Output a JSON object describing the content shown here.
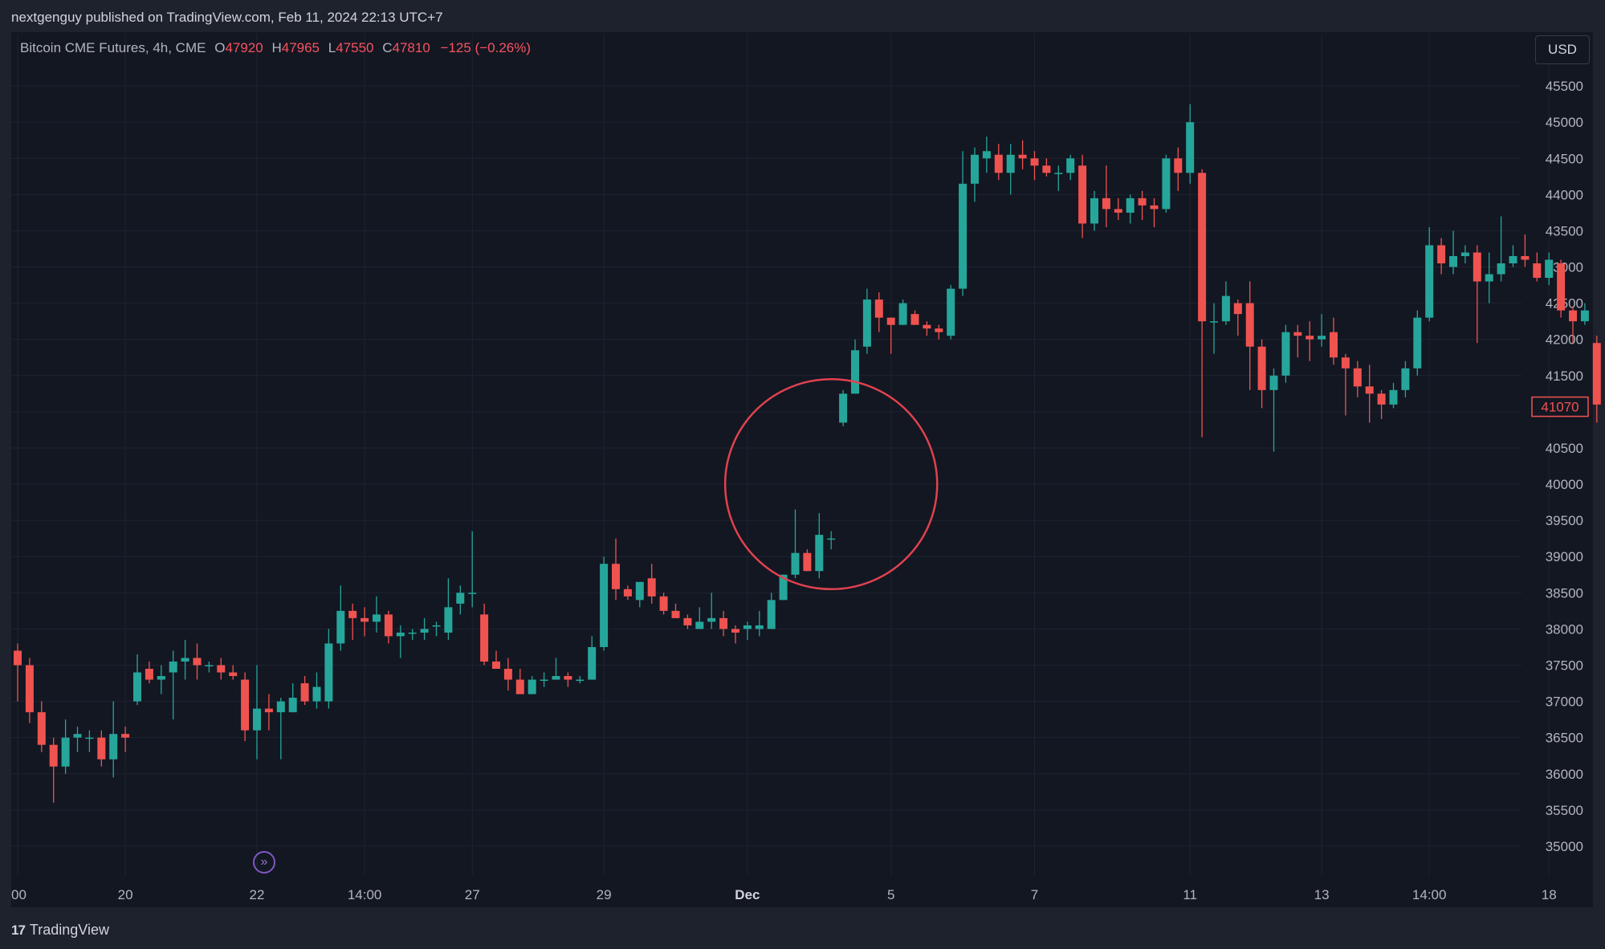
{
  "header": {
    "published": "nextgenguy published on TradingView.com, Feb 11, 2024 22:13 UTC+7"
  },
  "legend": {
    "symbol": "Bitcoin CME Futures, 4h, CME",
    "open_label": "O",
    "open": "47920",
    "high_label": "H",
    "high": "47965",
    "low_label": "L",
    "low": "47550",
    "close_label": "C",
    "close": "47810",
    "change": "−125 (−0.26%)"
  },
  "currency_button": "USD",
  "footer": {
    "brand": "TradingView",
    "brand_mark": "17"
  },
  "colors": {
    "up": "#26a69a",
    "down": "#ef5350",
    "annotation": "#e0424f",
    "background": "#131722"
  },
  "icons": {
    "go_to_date": "scroll-to-realtime-icon"
  },
  "chart_data": {
    "type": "candlestick",
    "timeframe": "4h",
    "ylim": [
      34600,
      46000
    ],
    "y_ticks": [
      35000,
      35500,
      36000,
      36500,
      37000,
      37500,
      38000,
      38500,
      39000,
      39500,
      40000,
      40500,
      41000,
      41500,
      42000,
      42500,
      43000,
      43500,
      44000,
      44500,
      45000,
      45500
    ],
    "x_ticks": [
      {
        "label": "00",
        "bar": 0
      },
      {
        "label": "20",
        "bar": 9
      },
      {
        "label": "22",
        "bar": 20
      },
      {
        "label": "14:00",
        "bar": 29
      },
      {
        "label": "27",
        "bar": 38
      },
      {
        "label": "29",
        "bar": 49
      },
      {
        "label": "Dec",
        "bar": 61
      },
      {
        "label": "5",
        "bar": 73
      },
      {
        "label": "7",
        "bar": 85
      },
      {
        "label": "11",
        "bar": 98
      },
      {
        "label": "13",
        "bar": 109
      },
      {
        "label": "14:00",
        "bar": 118
      },
      {
        "label": "18",
        "bar": 128
      }
    ],
    "last_price": 41070,
    "annotation": {
      "type": "circle",
      "center_bar": 68,
      "center_price": 40000,
      "radius_price": 1450
    },
    "candles": [
      [
        37700,
        37500,
        37800,
        37000
      ],
      [
        37500,
        36850,
        37600,
        36700
      ],
      [
        36850,
        36400,
        37000,
        36300
      ],
      [
        36400,
        36100,
        36500,
        35600
      ],
      [
        36100,
        36500,
        36750,
        36000
      ],
      [
        36500,
        36550,
        36650,
        36300
      ],
      [
        36500,
        36500,
        36600,
        36300
      ],
      [
        36500,
        36200,
        36600,
        36100
      ],
      [
        36200,
        36550,
        37000,
        35950
      ],
      [
        36550,
        36500,
        36650,
        36300
      ],
      [
        37000,
        37400,
        37650,
        36950
      ],
      [
        37450,
        37300,
        37550,
        37250
      ],
      [
        37300,
        37350,
        37500,
        37100
      ],
      [
        37400,
        37550,
        37700,
        36750
      ],
      [
        37550,
        37600,
        37850,
        37300
      ],
      [
        37600,
        37500,
        37800,
        37300
      ],
      [
        37500,
        37500,
        37550,
        37400
      ],
      [
        37500,
        37400,
        37600,
        37300
      ],
      [
        37400,
        37350,
        37500,
        37300
      ],
      [
        37300,
        36600,
        37400,
        36450
      ],
      [
        36600,
        36900,
        37500,
        36200
      ],
      [
        36900,
        36850,
        37100,
        36600
      ],
      [
        36850,
        37000,
        37050,
        36200
      ],
      [
        36850,
        37050,
        37250,
        36850
      ],
      [
        37250,
        37000,
        37350,
        36950
      ],
      [
        37000,
        37200,
        37400,
        36900
      ],
      [
        37000,
        37800,
        38000,
        36900
      ],
      [
        37800,
        38250,
        38600,
        37700
      ],
      [
        38250,
        38150,
        38350,
        37850
      ],
      [
        38150,
        38100,
        38300,
        37900
      ],
      [
        38100,
        38200,
        38450,
        37950
      ],
      [
        38200,
        37900,
        38250,
        37800
      ],
      [
        37900,
        37950,
        38050,
        37600
      ],
      [
        37950,
        37950,
        38000,
        37850
      ],
      [
        37950,
        38000,
        38150,
        37850
      ],
      [
        38050,
        38050,
        38100,
        37900
      ],
      [
        37950,
        38300,
        38700,
        37850
      ],
      [
        38350,
        38500,
        38600,
        38200
      ],
      [
        38500,
        38500,
        39350,
        38300
      ],
      [
        38200,
        37550,
        38350,
        37500
      ],
      [
        37550,
        37450,
        37700,
        37450
      ],
      [
        37450,
        37300,
        37600,
        37150
      ],
      [
        37300,
        37100,
        37450,
        37100
      ],
      [
        37100,
        37300,
        37350,
        37100
      ],
      [
        37300,
        37300,
        37400,
        37200
      ],
      [
        37300,
        37350,
        37600,
        37300
      ],
      [
        37350,
        37300,
        37400,
        37200
      ],
      [
        37300,
        37300,
        37350,
        37250
      ],
      [
        37300,
        37750,
        37900,
        37300
      ],
      [
        37750,
        38900,
        39000,
        37700
      ],
      [
        38900,
        38550,
        39250,
        38400
      ],
      [
        38550,
        38450,
        38600,
        38400
      ],
      [
        38400,
        38650,
        38650,
        38300
      ],
      [
        38700,
        38450,
        38900,
        38350
      ],
      [
        38450,
        38250,
        38500,
        38200
      ],
      [
        38250,
        38150,
        38350,
        38150
      ],
      [
        38150,
        38050,
        38200,
        38000
      ],
      [
        38000,
        38100,
        38300,
        38000
      ],
      [
        38100,
        38150,
        38500,
        38000
      ],
      [
        38150,
        38000,
        38250,
        37900
      ],
      [
        38000,
        37950,
        38050,
        37800
      ],
      [
        38000,
        38050,
        38100,
        37850
      ],
      [
        38000,
        38050,
        38250,
        37900
      ],
      [
        38000,
        38400,
        38500,
        38000
      ],
      [
        38400,
        38750,
        38750,
        38400
      ],
      [
        38750,
        39050,
        39650,
        38700
      ],
      [
        39050,
        38800,
        39100,
        38800
      ],
      [
        38800,
        39300,
        39600,
        38700
      ],
      [
        39250,
        39250,
        39350,
        39100
      ],
      [
        40850,
        41250,
        41300,
        40800
      ],
      [
        41250,
        41850,
        42000,
        41250
      ],
      [
        41900,
        42550,
        42700,
        41800
      ],
      [
        42550,
        42300,
        42650,
        42100
      ],
      [
        42300,
        42200,
        42300,
        41800
      ],
      [
        42200,
        42500,
        42550,
        42200
      ],
      [
        42350,
        42200,
        42400,
        42200
      ],
      [
        42200,
        42150,
        42250,
        42050
      ],
      [
        42150,
        42100,
        42200,
        42000
      ],
      [
        42050,
        42700,
        42750,
        42000
      ],
      [
        42700,
        44150,
        44600,
        42600
      ],
      [
        44150,
        44550,
        44650,
        43900
      ],
      [
        44500,
        44600,
        44800,
        44300
      ],
      [
        44550,
        44300,
        44700,
        44200
      ],
      [
        44300,
        44550,
        44700,
        44000
      ],
      [
        44550,
        44500,
        44750,
        44350
      ],
      [
        44500,
        44400,
        44600,
        44200
      ],
      [
        44400,
        44300,
        44500,
        44250
      ],
      [
        44300,
        44300,
        44400,
        44050
      ],
      [
        44300,
        44500,
        44550,
        44200
      ],
      [
        44400,
        43600,
        44550,
        43400
      ],
      [
        43600,
        43950,
        44050,
        43500
      ],
      [
        43950,
        43800,
        44400,
        43550
      ],
      [
        43800,
        43750,
        43950,
        43650
      ],
      [
        43750,
        43950,
        44000,
        43600
      ],
      [
        43950,
        43850,
        44050,
        43650
      ],
      [
        43850,
        43800,
        43950,
        43550
      ],
      [
        43800,
        44500,
        44550,
        43750
      ],
      [
        44500,
        44300,
        44650,
        44050
      ],
      [
        44300,
        45000,
        45250,
        44150
      ],
      [
        44300,
        42250,
        44350,
        40650
      ],
      [
        42250,
        42250,
        42500,
        41800
      ],
      [
        42250,
        42600,
        42800,
        42200
      ],
      [
        42500,
        42350,
        42550,
        42050
      ],
      [
        42500,
        41900,
        42800,
        41300
      ],
      [
        41900,
        41300,
        42000,
        41050
      ],
      [
        41300,
        41500,
        41600,
        40450
      ],
      [
        41500,
        42100,
        42200,
        41400
      ],
      [
        42100,
        42050,
        42200,
        41750
      ],
      [
        42050,
        42000,
        42250,
        41700
      ],
      [
        42000,
        42050,
        42350,
        41900
      ],
      [
        42100,
        41750,
        42300,
        41650
      ],
      [
        41750,
        41600,
        41800,
        40950
      ],
      [
        41600,
        41350,
        41700,
        41200
      ],
      [
        41350,
        41250,
        41650,
        40850
      ],
      [
        41250,
        41100,
        41300,
        40900
      ],
      [
        41100,
        41300,
        41400,
        41050
      ],
      [
        41300,
        41600,
        41700,
        41200
      ],
      [
        41600,
        42300,
        42400,
        41500
      ],
      [
        42300,
        43300,
        43550,
        42250
      ],
      [
        43300,
        43050,
        43400,
        42900
      ],
      [
        43000,
        43150,
        43500,
        42900
      ],
      [
        43150,
        43200,
        43300,
        43050
      ],
      [
        43200,
        42800,
        43300,
        41950
      ],
      [
        42800,
        42900,
        43200,
        42500
      ],
      [
        42900,
        43050,
        43700,
        42800
      ],
      [
        43050,
        43150,
        43300,
        43000
      ],
      [
        43150,
        43100,
        43450,
        43000
      ],
      [
        43050,
        42850,
        43200,
        42800
      ],
      [
        42850,
        43100,
        43200,
        42750
      ],
      [
        43050,
        42400,
        43100,
        42300
      ],
      [
        42400,
        42250,
        42450,
        41950
      ],
      [
        42250,
        42400,
        42500,
        42200
      ],
      [
        41950,
        41100,
        42050,
        40850
      ]
    ]
  }
}
